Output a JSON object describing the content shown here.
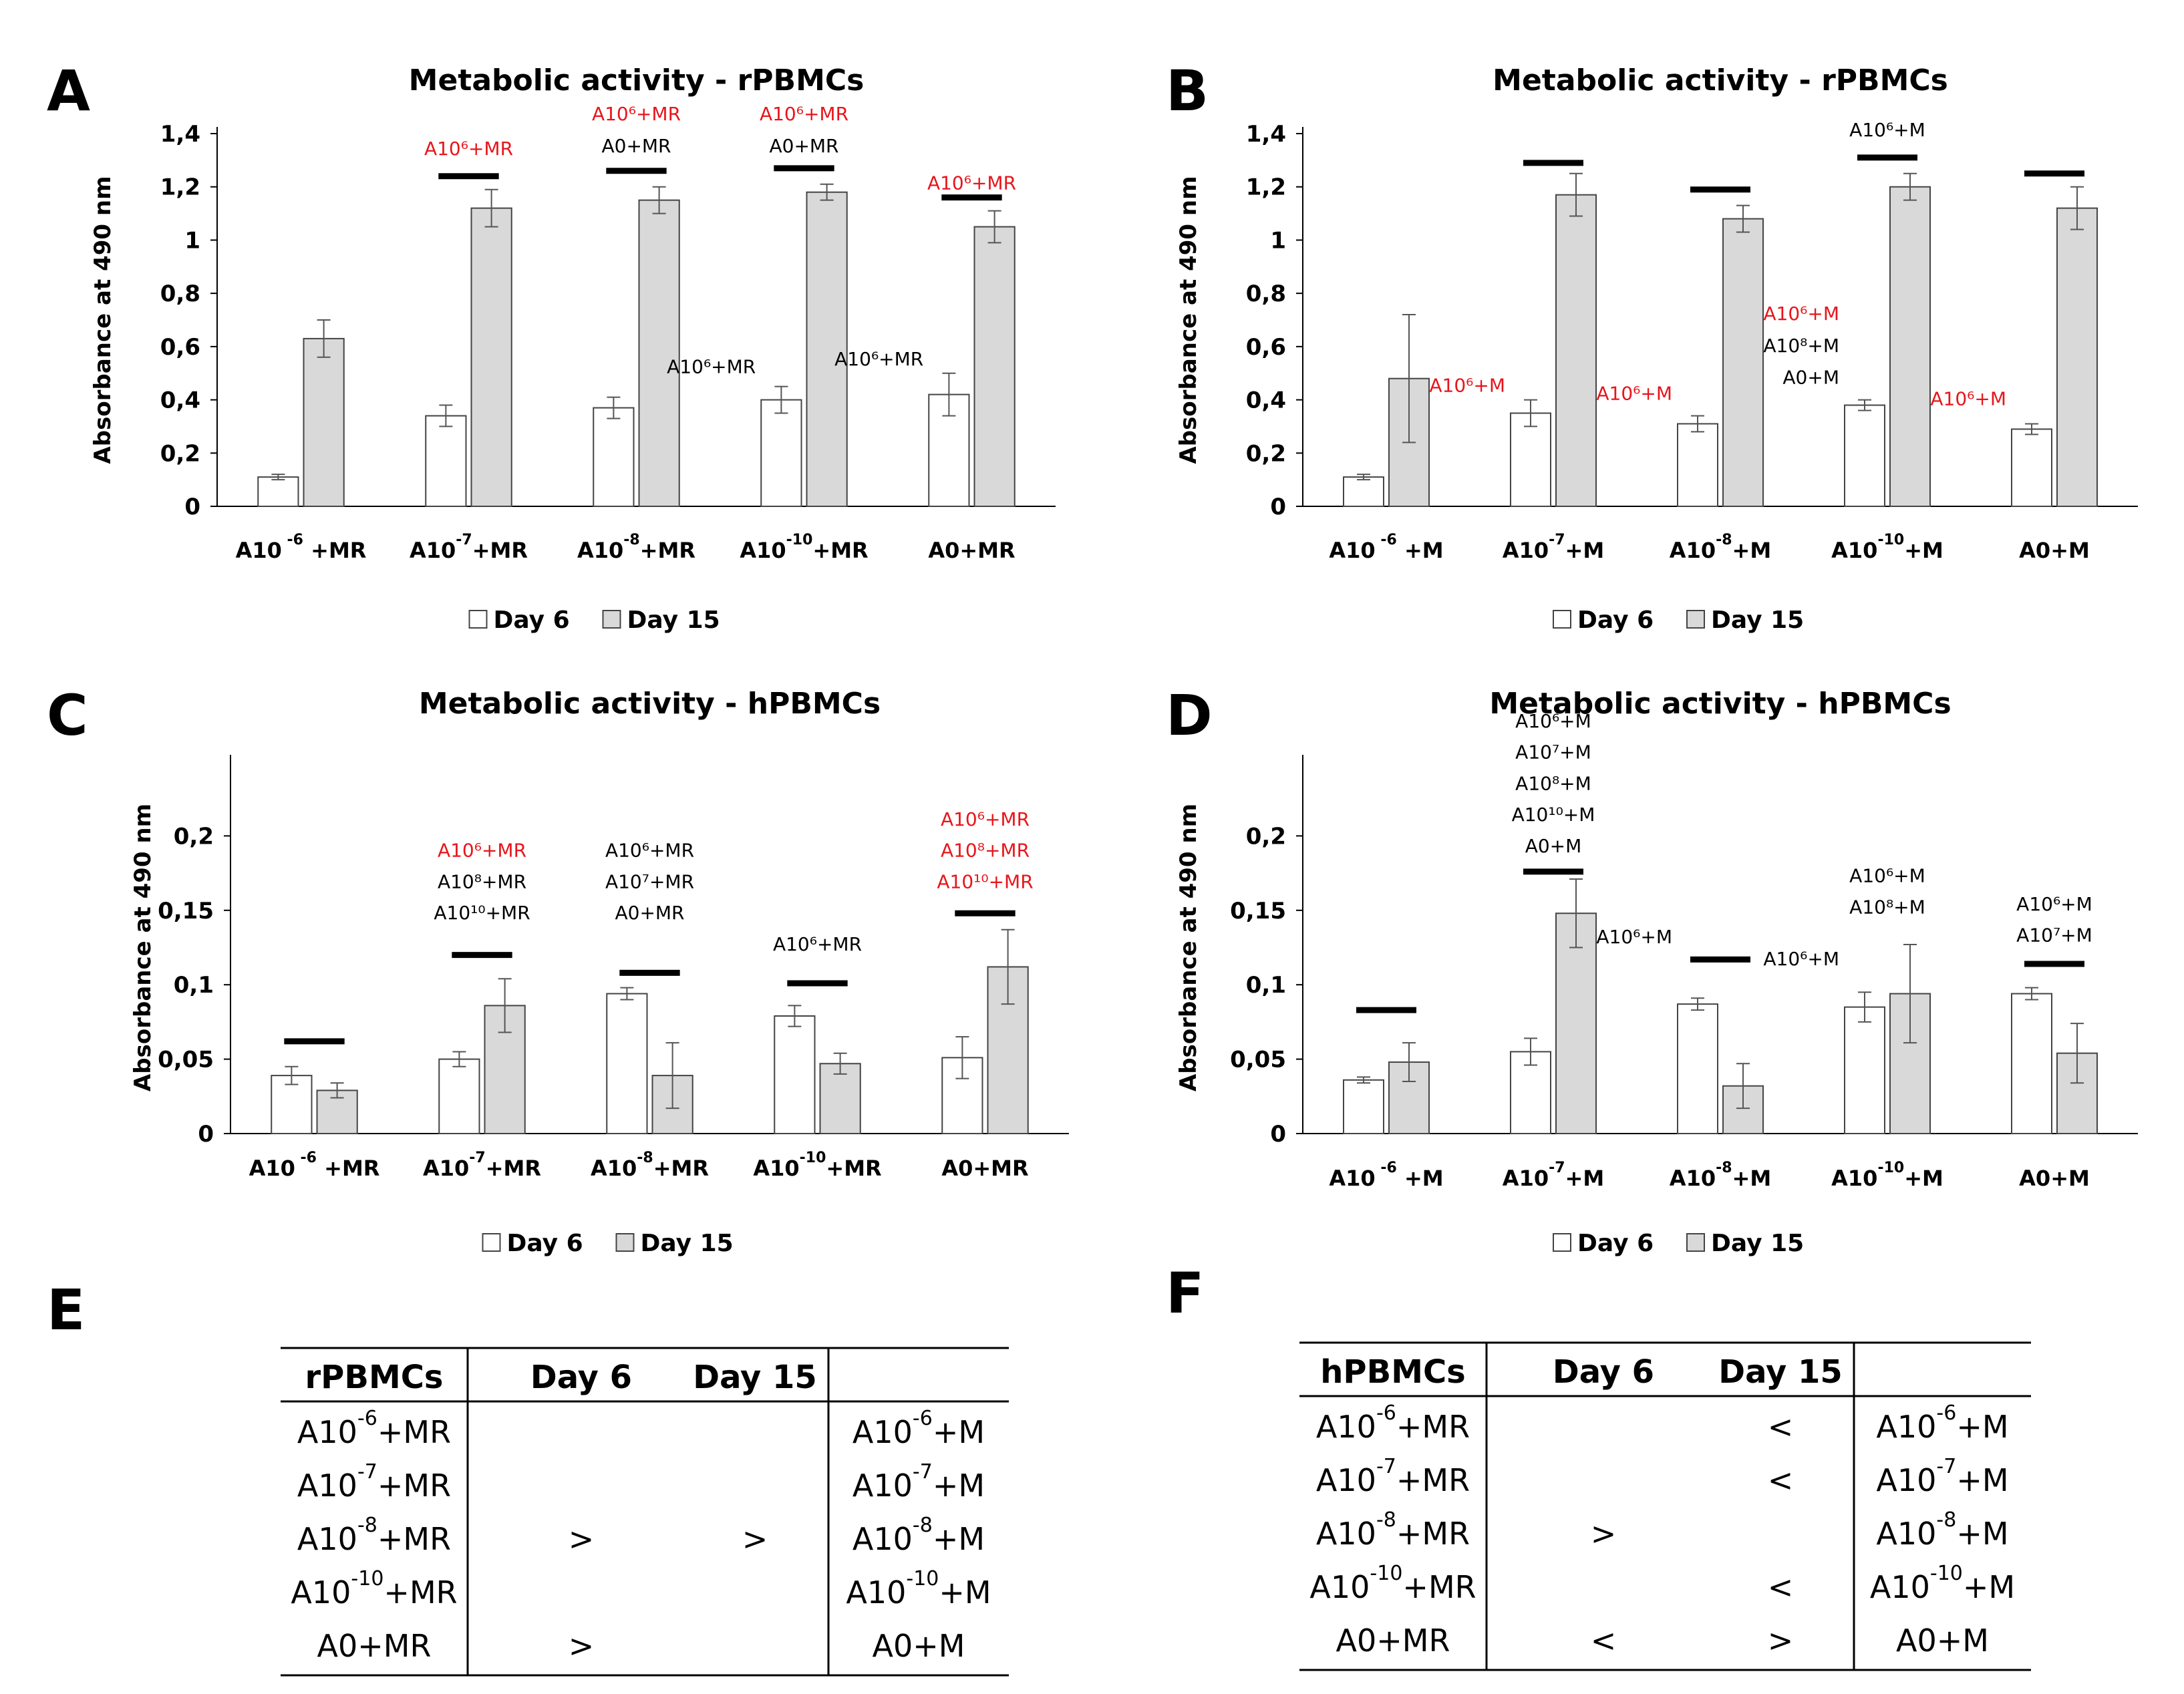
{
  "colors": {
    "day6": "#ffffff",
    "day15": "#d9d9d9",
    "sig": "#e8151b",
    "text": "#000000"
  },
  "chart_data": [
    {
      "panel": "A",
      "type": "bar",
      "title": "Metabolic activity - rPBMCs",
      "ylabel": "Absorbance at 490 nm",
      "ylim": [
        0,
        1.4
      ],
      "yticks": [
        "0",
        "0,2",
        "0,4",
        "0,6",
        "0,8",
        "1",
        "1,2",
        "1,4"
      ],
      "categories": [
        {
          "base": "A10",
          "sup": " -6",
          "tail": " +MR"
        },
        {
          "base": "A10",
          "sup": "-7",
          "tail": "+MR"
        },
        {
          "base": "A10",
          "sup": "-8",
          "tail": "+MR"
        },
        {
          "base": "A10",
          "sup": "-10",
          "tail": "+MR"
        },
        {
          "base": "A0+MR",
          "sup": "",
          "tail": ""
        }
      ],
      "series": [
        {
          "name": "Day 6",
          "values": [
            0.11,
            0.34,
            0.37,
            0.4,
            0.42
          ],
          "errors": [
            0.01,
            0.04,
            0.04,
            0.05,
            0.08
          ]
        },
        {
          "name": "Day 15",
          "values": [
            0.63,
            1.12,
            1.15,
            1.18,
            1.05
          ],
          "errors": [
            0.07,
            0.07,
            0.05,
            0.03,
            0.06
          ]
        }
      ],
      "legend": [
        "Day 6",
        "Day 15"
      ],
      "sigbars": [
        null,
        1.24,
        1.26,
        1.27,
        1.16
      ],
      "annotations": [
        [],
        [
          {
            "text": "A10⁶+MR",
            "red": true,
            "anchor": "group",
            "y": 1.32
          }
        ],
        [
          {
            "text": "A10⁶+MR",
            "red": true,
            "anchor": "group",
            "y": 1.45
          },
          {
            "text": "A0+MR",
            "red": false,
            "anchor": "group",
            "y": 1.33
          }
        ],
        [
          {
            "text": "A10⁶+MR",
            "red": true,
            "anchor": "group",
            "y": 1.45
          },
          {
            "text": "A0+MR",
            "red": false,
            "anchor": "group",
            "y": 1.33
          },
          {
            "text": "A10⁶+MR",
            "red": false,
            "anchor": "left",
            "y": 0.5
          }
        ],
        [
          {
            "text": "A10⁶+MR",
            "red": true,
            "anchor": "group",
            "y": 1.19
          },
          {
            "text": "A10⁶+MR",
            "red": false,
            "anchor": "left",
            "y": 0.53
          }
        ]
      ]
    },
    {
      "panel": "B",
      "type": "bar",
      "title": "Metabolic activity - rPBMCs",
      "ylabel": "Absorbance at 490 nm",
      "ylim": [
        0,
        1.4
      ],
      "yticks": [
        "0",
        "0,2",
        "0,4",
        "0,6",
        "0,8",
        "1",
        "1,2",
        "1,4"
      ],
      "categories": [
        {
          "base": "A10",
          "sup": " -6",
          "tail": " +M"
        },
        {
          "base": "A10",
          "sup": "-7",
          "tail": "+M"
        },
        {
          "base": "A10",
          "sup": "-8",
          "tail": "+M"
        },
        {
          "base": "A10",
          "sup": "-10",
          "tail": "+M"
        },
        {
          "base": "A0+M",
          "sup": "",
          "tail": ""
        }
      ],
      "series": [
        {
          "name": "Day 6",
          "values": [
            0.11,
            0.35,
            0.31,
            0.38,
            0.29
          ],
          "errors": [
            0.01,
            0.05,
            0.03,
            0.02,
            0.02
          ]
        },
        {
          "name": "Day 15",
          "values": [
            0.48,
            1.17,
            1.08,
            1.2,
            1.12
          ],
          "errors": [
            0.24,
            0.08,
            0.05,
            0.05,
            0.08
          ]
        }
      ],
      "legend": [
        "Day 6",
        "Day 15"
      ],
      "sigbars": [
        null,
        1.29,
        1.19,
        1.31,
        1.25
      ],
      "annotations": [
        [],
        [
          {
            "text": "A10⁶+M",
            "red": true,
            "anchor": "left",
            "y": 0.43
          }
        ],
        [
          {
            "text": "A10⁶+M",
            "red": true,
            "anchor": "left",
            "y": 0.4
          }
        ],
        [
          {
            "text": "A10⁶+M",
            "red": false,
            "anchor": "group",
            "y": 1.39
          },
          {
            "text": "A10⁶+M",
            "red": true,
            "anchor": "left",
            "y": 0.7
          },
          {
            "text": "A10⁸+M",
            "red": false,
            "anchor": "left",
            "y": 0.58
          },
          {
            "text": "A0+M",
            "red": false,
            "anchor": "left",
            "y": 0.46
          }
        ],
        [
          {
            "text": "A10⁶+M",
            "red": true,
            "anchor": "left",
            "y": 0.38
          }
        ]
      ]
    },
    {
      "panel": "C",
      "type": "bar",
      "title": "Metabolic activity - hPBMCs",
      "ylabel": "Absorbance at 490 nm",
      "ylim": [
        0,
        0.25
      ],
      "yticks": [
        "0",
        "0,05",
        "0,1",
        "0,15",
        "0,2"
      ],
      "categories": [
        {
          "base": "A10",
          "sup": " -6",
          "tail": " +MR"
        },
        {
          "base": "A10",
          "sup": "-7",
          "tail": "+MR"
        },
        {
          "base": "A10",
          "sup": "-8",
          "tail": "+MR"
        },
        {
          "base": "A10",
          "sup": "-10",
          "tail": "+MR"
        },
        {
          "base": "A0+MR",
          "sup": "",
          "tail": ""
        }
      ],
      "series": [
        {
          "name": "Day 6",
          "values": [
            0.039,
            0.05,
            0.094,
            0.079,
            0.051
          ],
          "errors": [
            0.006,
            0.005,
            0.004,
            0.007,
            0.014
          ]
        },
        {
          "name": "Day 15",
          "values": [
            0.029,
            0.086,
            0.039,
            0.047,
            0.112
          ],
          "errors": [
            0.005,
            0.018,
            0.022,
            0.007,
            0.025
          ]
        }
      ],
      "legend": [
        "Day 6",
        "Day 15"
      ],
      "sigbars": [
        0.062,
        0.12,
        0.108,
        0.101,
        0.148
      ],
      "annotations": [
        [],
        [
          {
            "text": "A10⁶+MR",
            "red": true,
            "anchor": "group",
            "y": 0.186
          },
          {
            "text": "A10⁸+MR",
            "red": false,
            "anchor": "group",
            "y": 0.165
          },
          {
            "text": "A10¹⁰+MR",
            "red": false,
            "anchor": "group",
            "y": 0.144
          }
        ],
        [
          {
            "text": "A10⁶+MR",
            "red": false,
            "anchor": "group",
            "y": 0.186
          },
          {
            "text": "A10⁷+MR",
            "red": false,
            "anchor": "group",
            "y": 0.165
          },
          {
            "text": "A0+MR",
            "red": false,
            "anchor": "group",
            "y": 0.144
          }
        ],
        [
          {
            "text": "A10⁶+MR",
            "red": false,
            "anchor": "group",
            "y": 0.123
          }
        ],
        [
          {
            "text": "A10⁶+MR",
            "red": true,
            "anchor": "group",
            "y": 0.207
          },
          {
            "text": "A10⁸+MR",
            "red": true,
            "anchor": "group",
            "y": 0.186
          },
          {
            "text": "A10¹⁰+MR",
            "red": true,
            "anchor": "group",
            "y": 0.165
          }
        ]
      ]
    },
    {
      "panel": "D",
      "type": "bar",
      "title": "Metabolic activity - hPBMCs",
      "ylabel": "Absorbance at 490 nm",
      "ylim": [
        0,
        0.25
      ],
      "yticks": [
        "0",
        "0,05",
        "0,1",
        "0,15",
        "0,2"
      ],
      "categories": [
        {
          "base": "A10",
          "sup": " -6",
          "tail": " +M"
        },
        {
          "base": "A10",
          "sup": "-7",
          "tail": "+M"
        },
        {
          "base": "A10",
          "sup": "-8",
          "tail": "+M"
        },
        {
          "base": "A10",
          "sup": "-10",
          "tail": "+M"
        },
        {
          "base": "A0+M",
          "sup": "",
          "tail": ""
        }
      ],
      "series": [
        {
          "name": "Day 6",
          "values": [
            0.036,
            0.055,
            0.087,
            0.085,
            0.094
          ],
          "errors": [
            0.002,
            0.009,
            0.004,
            0.01,
            0.004
          ]
        },
        {
          "name": "Day 15",
          "values": [
            0.048,
            0.148,
            0.032,
            0.094,
            0.054
          ],
          "errors": [
            0.013,
            0.023,
            0.015,
            0.033,
            0.02
          ]
        }
      ],
      "legend": [
        "Day 6",
        "Day 15"
      ],
      "sigbars": [
        0.083,
        0.176,
        0.117,
        null,
        0.114
      ],
      "annotations": [
        [],
        [
          {
            "text": "A10⁶+M",
            "red": false,
            "anchor": "group",
            "y": 0.273
          },
          {
            "text": "A10⁷+M",
            "red": false,
            "anchor": "group",
            "y": 0.252
          },
          {
            "text": "A10⁸+M",
            "red": false,
            "anchor": "group",
            "y": 0.231
          },
          {
            "text": "A10¹⁰+M",
            "red": false,
            "anchor": "group",
            "y": 0.21
          },
          {
            "text": "A0+M",
            "red": false,
            "anchor": "group",
            "y": 0.189
          }
        ],
        [
          {
            "text": "A10⁶+M",
            "red": false,
            "anchor": "left",
            "y": 0.128
          }
        ],
        [
          {
            "text": "A10⁶+M",
            "red": false,
            "anchor": "left",
            "y": 0.113
          },
          {
            "text": "A10⁶+M",
            "red": false,
            "anchor": "group",
            "y": 0.169
          },
          {
            "text": "A10⁸+M",
            "red": false,
            "anchor": "group",
            "y": 0.148
          }
        ],
        [
          {
            "text": "A10⁶+M",
            "red": false,
            "anchor": "group",
            "y": 0.15
          },
          {
            "text": "A10⁷+M",
            "red": false,
            "anchor": "group",
            "y": 0.129
          }
        ]
      ]
    }
  ],
  "tables": [
    {
      "panel": "E",
      "header": [
        "rPBMCs",
        "Day 6",
        "Day 15",
        ""
      ],
      "rows": [
        [
          {
            "base": "A10",
            "sup": "-6",
            "tail": "+MR"
          },
          "",
          "",
          {
            "base": "A10",
            "sup": "-6",
            "tail": "+M"
          }
        ],
        [
          {
            "base": "A10",
            "sup": "-7",
            "tail": "+MR"
          },
          "",
          "",
          {
            "base": "A10",
            "sup": "-7",
            "tail": "+M"
          }
        ],
        [
          {
            "base": "A10",
            "sup": "-8",
            "tail": "+MR"
          },
          ">",
          ">",
          {
            "base": "A10",
            "sup": "-8",
            "tail": "+M"
          }
        ],
        [
          {
            "base": "A10",
            "sup": "-10",
            "tail": "+MR"
          },
          "",
          "",
          {
            "base": "A10",
            "sup": "-10",
            "tail": "+M"
          }
        ],
        [
          {
            "base": "A0+MR",
            "sup": "",
            "tail": ""
          },
          ">",
          "",
          {
            "base": "A0+M",
            "sup": "",
            "tail": ""
          }
        ]
      ]
    },
    {
      "panel": "F",
      "header": [
        "hPBMCs",
        "Day 6",
        "Day 15",
        ""
      ],
      "rows": [
        [
          {
            "base": "A10",
            "sup": "-6",
            "tail": "+MR"
          },
          "",
          "<",
          {
            "base": "A10",
            "sup": "-6",
            "tail": "+M"
          }
        ],
        [
          {
            "base": "A10",
            "sup": "-7",
            "tail": "+MR"
          },
          "",
          "<",
          {
            "base": "A10",
            "sup": "-7",
            "tail": "+M"
          }
        ],
        [
          {
            "base": "A10",
            "sup": "-8",
            "tail": "+MR"
          },
          ">",
          "",
          {
            "base": "A10",
            "sup": "-8",
            "tail": "+M"
          }
        ],
        [
          {
            "base": "A10",
            "sup": "-10",
            "tail": "+MR"
          },
          "",
          "<",
          {
            "base": "A10",
            "sup": "-10",
            "tail": "+M"
          }
        ],
        [
          {
            "base": "A0+MR",
            "sup": "",
            "tail": ""
          },
          "<",
          ">",
          {
            "base": "A0+M",
            "sup": "",
            "tail": ""
          }
        ]
      ]
    }
  ]
}
